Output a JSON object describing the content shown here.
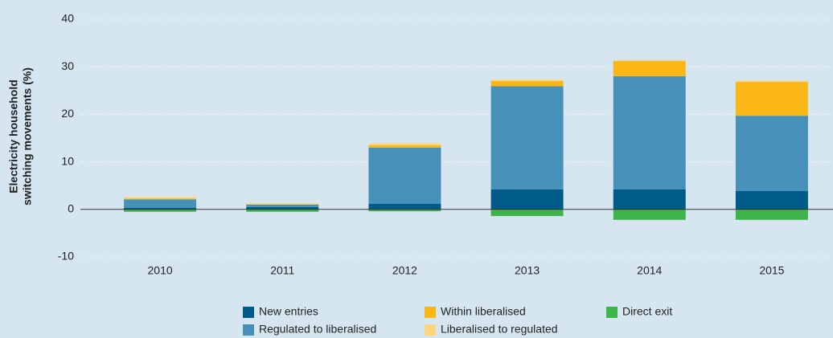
{
  "chart_data": {
    "type": "stacked_bar",
    "y_label": [
      "Electricity household",
      "switching movements (%)"
    ],
    "categories": [
      "2010",
      "2011",
      "2012",
      "2013",
      "2014",
      "2015"
    ],
    "series": [
      {
        "name": "New entries",
        "color": "#005b88",
        "values": [
          0.3,
          0.5,
          1.2,
          4.2,
          4.2,
          3.9
        ]
      },
      {
        "name": "Regulated to liberalised",
        "color": "#4690b9",
        "values": [
          1.8,
          0.5,
          11.8,
          21.7,
          23.8,
          15.8
        ]
      },
      {
        "name": "Within liberalised",
        "color": "#fbb715",
        "values": [
          0.2,
          0.1,
          0.5,
          1.1,
          3.2,
          7.1
        ]
      },
      {
        "name": "Liberalised to regulated",
        "color": "#fdd580",
        "values": [
          0.3,
          0.2,
          0.4,
          0.3,
          0.2,
          0.3
        ]
      },
      {
        "name": "Direct exit",
        "color": "#3db54a",
        "values": [
          -0.5,
          -0.5,
          -0.4,
          -1.4,
          -2.2,
          -2.2
        ]
      }
    ],
    "ylim": [
      -10,
      40
    ],
    "yticks": [
      -10,
      0,
      10,
      20,
      30,
      40
    ],
    "grid": true
  }
}
